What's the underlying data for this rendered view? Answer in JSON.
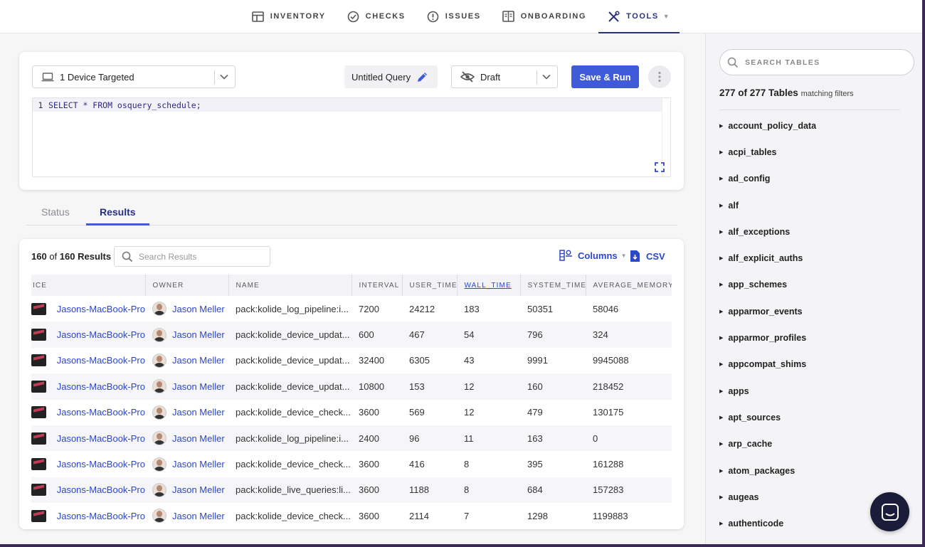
{
  "nav": {
    "items": [
      {
        "label": "INVENTORY",
        "icon": "table-icon"
      },
      {
        "label": "CHECKS",
        "icon": "check-circle-icon"
      },
      {
        "label": "ISSUES",
        "icon": "alert-circle-icon"
      },
      {
        "label": "ONBOARDING",
        "icon": "onboarding-icon"
      },
      {
        "label": "TOOLS",
        "icon": "tools-icon",
        "active": true
      }
    ]
  },
  "editor": {
    "device_target": "1 Device Targeted",
    "query_name": "Untitled Query",
    "visibility": "Draft",
    "save_run_label": "Save & Run",
    "line_number": "1",
    "sql": "SELECT * FROM osquery_schedule;"
  },
  "tabs": {
    "status": "Status",
    "results": "Results",
    "active": "Results"
  },
  "results": {
    "shown": "160",
    "of": "of",
    "total": "160",
    "label": "Results",
    "search_placeholder": "Search Results",
    "columns_label": "Columns",
    "csv_label": "CSV",
    "columns": [
      "ICE",
      "OWNER",
      "NAME",
      "INTERVAL",
      "USER_TIME",
      "WALL_TIME",
      "SYSTEM_TIME",
      "AVERAGE_MEMORY"
    ],
    "sorted_column": "WALL_TIME",
    "rows": [
      {
        "device": "Jasons-MacBook-Pro",
        "owner": "Jason Meller",
        "name": "pack:kolide_log_pipeline:i...",
        "interval": "7200",
        "user_time": "24212",
        "wall_time": "183",
        "system_time": "50351",
        "average_memory": "58046"
      },
      {
        "device": "Jasons-MacBook-Pro",
        "owner": "Jason Meller",
        "name": "pack:kolide_device_updat...",
        "interval": "600",
        "user_time": "467",
        "wall_time": "54",
        "system_time": "796",
        "average_memory": "324"
      },
      {
        "device": "Jasons-MacBook-Pro",
        "owner": "Jason Meller",
        "name": "pack:kolide_device_updat...",
        "interval": "32400",
        "user_time": "6305",
        "wall_time": "43",
        "system_time": "9991",
        "average_memory": "9945088"
      },
      {
        "device": "Jasons-MacBook-Pro",
        "owner": "Jason Meller",
        "name": "pack:kolide_device_updat...",
        "interval": "10800",
        "user_time": "153",
        "wall_time": "12",
        "system_time": "160",
        "average_memory": "218452"
      },
      {
        "device": "Jasons-MacBook-Pro",
        "owner": "Jason Meller",
        "name": "pack:kolide_device_check...",
        "interval": "3600",
        "user_time": "569",
        "wall_time": "12",
        "system_time": "479",
        "average_memory": "130175"
      },
      {
        "device": "Jasons-MacBook-Pro",
        "owner": "Jason Meller",
        "name": "pack:kolide_log_pipeline:i...",
        "interval": "2400",
        "user_time": "96",
        "wall_time": "11",
        "system_time": "163",
        "average_memory": "0"
      },
      {
        "device": "Jasons-MacBook-Pro",
        "owner": "Jason Meller",
        "name": "pack:kolide_device_check...",
        "interval": "3600",
        "user_time": "416",
        "wall_time": "8",
        "system_time": "395",
        "average_memory": "161288"
      },
      {
        "device": "Jasons-MacBook-Pro",
        "owner": "Jason Meller",
        "name": "pack:kolide_live_queries:li...",
        "interval": "3600",
        "user_time": "1188",
        "wall_time": "8",
        "system_time": "684",
        "average_memory": "157283"
      },
      {
        "device": "Jasons-MacBook-Pro",
        "owner": "Jason Meller",
        "name": "pack:kolide_device_check...",
        "interval": "3600",
        "user_time": "2114",
        "wall_time": "7",
        "system_time": "1298",
        "average_memory": "1199883"
      }
    ]
  },
  "sidebar": {
    "search_placeholder": "SEARCH TABLES",
    "count_text": "277 of 277 Tables",
    "count_suffix": "matching filters",
    "tables": [
      "account_policy_data",
      "acpi_tables",
      "ad_config",
      "alf",
      "alf_exceptions",
      "alf_explicit_auths",
      "app_schemes",
      "apparmor_events",
      "apparmor_profiles",
      "appcompat_shims",
      "apps",
      "apt_sources",
      "arp_cache",
      "atom_packages",
      "augeas",
      "authenticode"
    ]
  },
  "colors": {
    "accent": "#3f5bd9",
    "link": "#2c47c7",
    "nav_active": "#2a3080",
    "chat_button": "#1b1c3a"
  }
}
